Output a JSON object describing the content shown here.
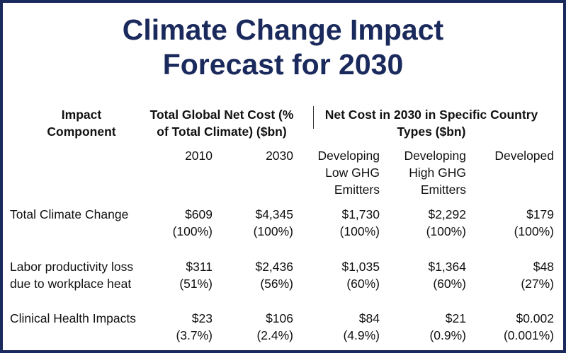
{
  "title": {
    "line1": "Climate Change Impact",
    "line2": "Forecast for 2030"
  },
  "headers": {
    "impact_component": [
      "Impact",
      "Component"
    ],
    "global_cost": [
      "Total Global Net Cost (%",
      "of Total Climate) ($bn)"
    ],
    "country_cost": [
      "Net Cost in 2030 in Specific Country",
      "Types ($bn)"
    ]
  },
  "subheaders": {
    "y2010": "2010",
    "y2030": "2030",
    "dev_low": [
      "Developing",
      "Low GHG",
      "Emitters"
    ],
    "dev_high": [
      "Developing",
      "High GHG",
      "Emitters"
    ],
    "developed": "Developed"
  },
  "rows": [
    {
      "label": [
        "Total Climate Change"
      ],
      "cells": [
        [
          "$609",
          "(100%)"
        ],
        [
          "$4,345",
          "(100%)"
        ],
        [
          "$1,730",
          "(100%)"
        ],
        [
          "$2,292",
          "(100%)"
        ],
        [
          "$179",
          "(100%)"
        ]
      ]
    },
    {
      "label": [
        "Labor productivity loss",
        "due to workplace heat"
      ],
      "cells": [
        [
          "$311",
          "(51%)"
        ],
        [
          "$2,436",
          "(56%)"
        ],
        [
          "$1,035",
          "(60%)"
        ],
        [
          "$1,364",
          "(60%)"
        ],
        [
          "$48",
          "(27%)"
        ]
      ]
    },
    {
      "label": [
        "Clinical Health Impacts"
      ],
      "cells": [
        [
          "$23",
          "(3.7%)"
        ],
        [
          "$106",
          "(2.4%)"
        ],
        [
          "$84",
          "(4.9%)"
        ],
        [
          "$21",
          "(0.9%)"
        ],
        [
          "$0.002",
          "(0.001%)"
        ]
      ]
    }
  ]
}
